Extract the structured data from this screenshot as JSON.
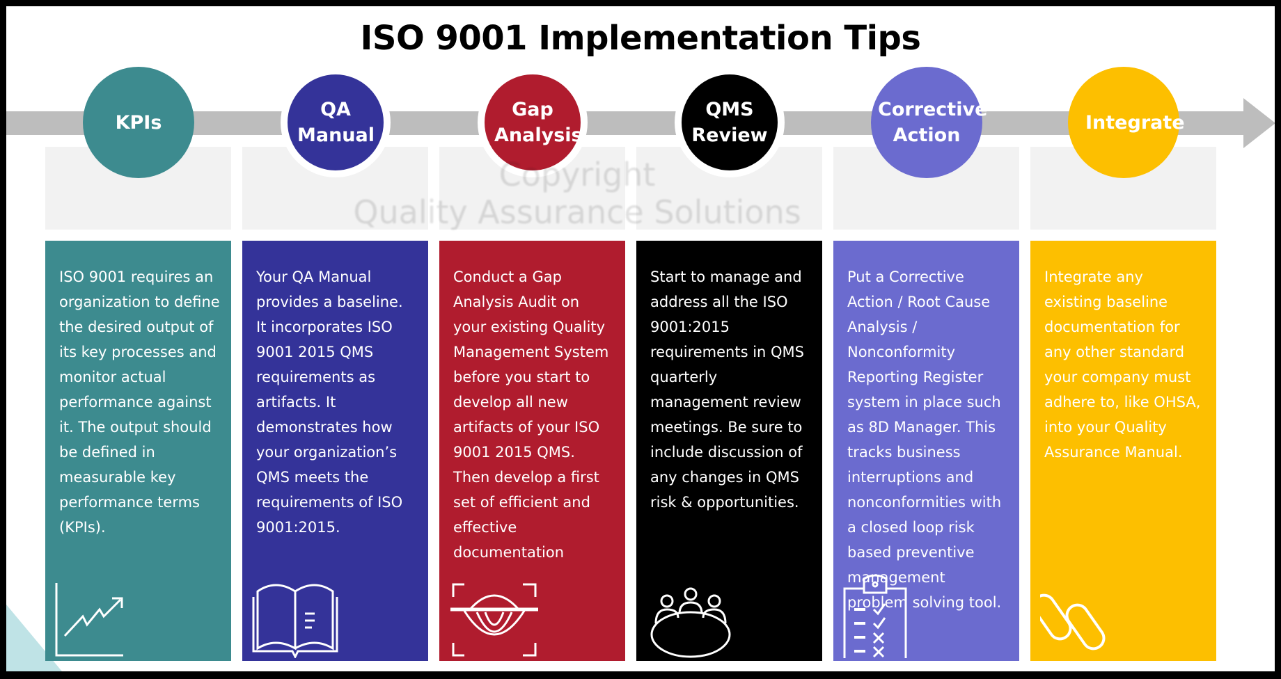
{
  "title": "ISO 9001 Implementation Tips",
  "watermark": {
    "line1": "Copyright",
    "line2": "Quality Assurance Solutions"
  },
  "steps": [
    {
      "label": "KPIs",
      "color": "#3d8b8f",
      "text": "ISO 9001 requires an organization to define the desired output of its key processes and monitor actual performance against it. The output should be defined in measurable key performance terms (KPIs).",
      "icon": "chart-trend-up-icon"
    },
    {
      "label": "QA Manual",
      "color": "#343399",
      "text": "Your QA Manual provides a baseline. It incorporates ISO 9001 2015 QMS requirements as artifacts. It demonstrates how your organization’s QMS meets the requirements of ISO 9001:2015.",
      "icon": "open-book-icon"
    },
    {
      "label": "Gap Analysis",
      "color": "#b01c2e",
      "text": "Conduct a Gap Analysis Audit on your existing Quality Management System before you start to develop all new artifacts of your ISO 9001 2015 QMS. Then develop a first set of efficient and effective documentation",
      "icon": "eye-scan-icon"
    },
    {
      "label": "QMS Review",
      "color": "#000000",
      "text": "Start to manage and address all the ISO 9001:2015 requirements in QMS quarterly management review meetings. Be sure to include discussion of any changes in QMS risk & opportunities.",
      "icon": "meeting-table-icon"
    },
    {
      "label": "Corrective Action",
      "color": "#6b6bcf",
      "text": "Put a Corrective Action / Root Cause Analysis / Nonconformity Reporting Register system in place such as 8D Manager. This tracks business interruptions and nonconformities with a closed loop risk based preventive management problem solving tool.",
      "icon": "checklist-clipboard-icon"
    },
    {
      "label": "Integrate",
      "color": "#fdbf00",
      "text": "Integrate any existing baseline documentation for any other standard your company must adhere to, like OHSA, into your Quality Assurance Manual.",
      "icon": "chain-link-icon"
    }
  ]
}
